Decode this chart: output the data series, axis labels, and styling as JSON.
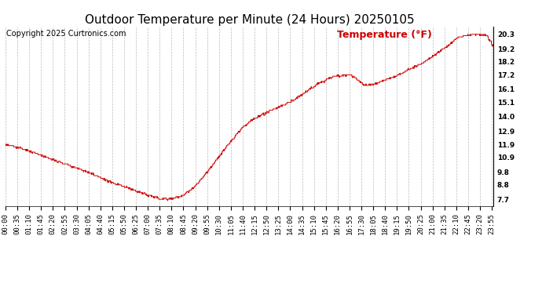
{
  "title": "Outdoor Temperature per Minute (24 Hours) 20250105",
  "copyright": "Copyright 2025 Curtronics.com",
  "legend_label": "Temperature (°F)",
  "line_color": "#cc0000",
  "legend_color": "#cc0000",
  "background_color": "#ffffff",
  "grid_color": "#bbbbbb",
  "ylabel_right_values": [
    7.7,
    8.8,
    9.8,
    10.9,
    11.9,
    12.9,
    14.0,
    15.1,
    16.1,
    17.2,
    18.2,
    19.2,
    20.3
  ],
  "ylim": [
    7.2,
    20.9
  ],
  "x_tick_labels": [
    "00:00",
    "00:35",
    "01:10",
    "01:45",
    "02:20",
    "02:55",
    "03:30",
    "04:05",
    "04:40",
    "05:15",
    "05:50",
    "06:25",
    "07:00",
    "07:35",
    "08:10",
    "08:45",
    "09:20",
    "09:55",
    "10:30",
    "11:05",
    "11:40",
    "12:15",
    "12:50",
    "13:25",
    "14:00",
    "14:35",
    "15:10",
    "15:45",
    "16:20",
    "16:55",
    "17:30",
    "18:05",
    "18:40",
    "19:15",
    "19:50",
    "20:25",
    "21:00",
    "21:35",
    "22:10",
    "22:45",
    "23:20",
    "23:55"
  ],
  "title_fontsize": 11,
  "copyright_fontsize": 7,
  "tick_fontsize": 6.5,
  "legend_fontsize": 9,
  "waypoints_min": [
    0,
    55,
    100,
    140,
    175,
    210,
    250,
    285,
    320,
    360,
    400,
    440,
    455,
    465,
    475,
    490,
    510,
    530,
    555,
    580,
    610,
    640,
    670,
    700,
    730,
    760,
    790,
    820,
    850,
    880,
    920,
    950,
    970,
    990,
    1020,
    1060,
    1090,
    1120,
    1150,
    1190,
    1230,
    1270,
    1310,
    1330,
    1360,
    1390,
    1420,
    1439
  ],
  "waypoints_temp": [
    11.9,
    11.5,
    11.1,
    10.7,
    10.4,
    10.1,
    9.7,
    9.3,
    8.9,
    8.6,
    8.2,
    7.85,
    7.75,
    7.72,
    7.71,
    7.75,
    7.85,
    8.1,
    8.6,
    9.3,
    10.3,
    11.3,
    12.3,
    13.2,
    13.8,
    14.2,
    14.6,
    14.9,
    15.3,
    15.8,
    16.5,
    16.9,
    17.1,
    17.15,
    17.2,
    16.4,
    16.5,
    16.8,
    17.1,
    17.6,
    18.1,
    18.8,
    19.5,
    20.0,
    20.2,
    20.3,
    20.2,
    19.4
  ]
}
